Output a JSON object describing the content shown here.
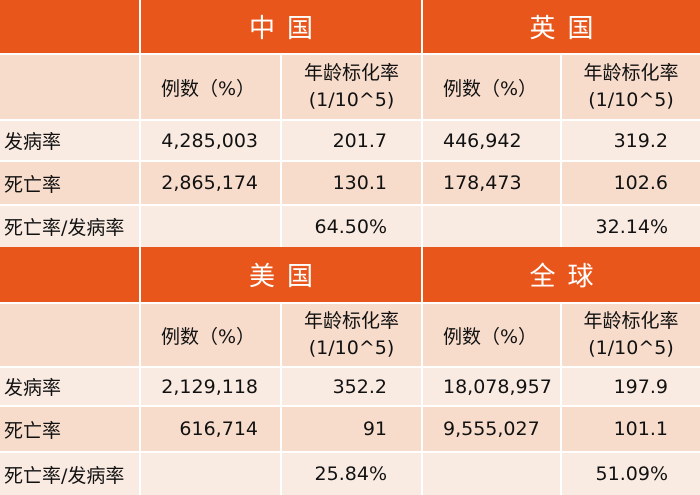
{
  "top": {
    "region_left": "中国",
    "region_right": "英国",
    "sub_count": "例数（%）",
    "sub_rate_line1": "年龄标化率",
    "sub_rate_line2": "(1/10^5)",
    "incidence_label": "发病率",
    "mortality_label": "死亡率",
    "ratio_label": "死亡率/发病率",
    "left": {
      "incidence_count": "4,285,003",
      "incidence_rate": "201.7",
      "mortality_count": "2,865,174",
      "mortality_rate": "130.1",
      "ratio": "64.50%"
    },
    "right": {
      "incidence_count": "446,942",
      "incidence_rate": "319.2",
      "mortality_count": "178,473",
      "mortality_rate": "102.6",
      "ratio": "32.14%"
    }
  },
  "bottom": {
    "region_left": "美国",
    "region_right": "全球",
    "sub_count": "例数（%）",
    "sub_rate_line1": "年龄标化率",
    "sub_rate_line2": "(1/10^5)",
    "incidence_label": "发病率",
    "mortality_label": "死亡率",
    "ratio_label": "死亡率/发病率",
    "left": {
      "incidence_count": "2,129,118",
      "incidence_rate": "352.2",
      "mortality_count": "616,714",
      "mortality_rate": "91",
      "ratio": "25.84%"
    },
    "right": {
      "incidence_count": "18,078,957",
      "incidence_rate": "197.9",
      "mortality_count": "9,555,027",
      "mortality_rate": "101.1",
      "ratio": "51.09%"
    }
  },
  "colors": {
    "header": "#E8561B",
    "band_dark": "#F7DCCC",
    "band_light": "#FAEBE2",
    "header_text": "#ffffff"
  }
}
